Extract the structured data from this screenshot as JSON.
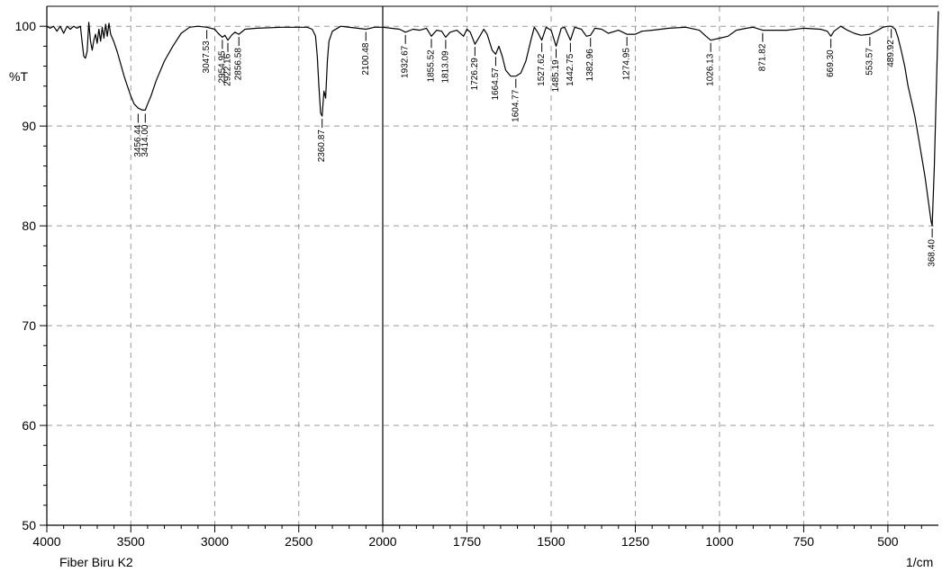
{
  "chart_data": {
    "type": "line",
    "title": "",
    "xlabel": "",
    "ylabel": "%T",
    "x_unit": "1/cm",
    "sample_name": "Fiber Biru K2",
    "xlim": [
      4000,
      350
    ],
    "ylim": [
      50,
      102
    ],
    "x_axis_break": 2000,
    "x_ticks": [
      4000,
      3500,
      3000,
      2500,
      2000,
      1750,
      1500,
      1250,
      1000,
      750,
      500
    ],
    "x_tick_labels": [
      "4000",
      "3500",
      "3000",
      "2500",
      "2000",
      "1750",
      "1500",
      "1250",
      "1000",
      "750",
      "500"
    ],
    "y_ticks": [
      50,
      60,
      70,
      80,
      90,
      100
    ],
    "y_tick_labels": [
      "50",
      "60",
      "70",
      "80",
      "90",
      "100"
    ],
    "grid": true,
    "series": [
      {
        "color": "#000000",
        "points": [
          [
            4000,
            100
          ],
          [
            3980,
            99.8
          ],
          [
            3960,
            100
          ],
          [
            3940,
            99.5
          ],
          [
            3920,
            100
          ],
          [
            3900,
            99.3
          ],
          [
            3880,
            100
          ],
          [
            3860,
            99.7
          ],
          [
            3840,
            100
          ],
          [
            3820,
            99.8
          ],
          [
            3800,
            100
          ],
          [
            3790,
            98.4
          ],
          [
            3780,
            97.0
          ],
          [
            3770,
            96.8
          ],
          [
            3760,
            97.5
          ],
          [
            3750,
            100.4
          ],
          [
            3740,
            98.5
          ],
          [
            3730,
            97.6
          ],
          [
            3720,
            98.6
          ],
          [
            3710,
            99.2
          ],
          [
            3700,
            98.3
          ],
          [
            3690,
            99.7
          ],
          [
            3680,
            98.5
          ],
          [
            3670,
            99.9
          ],
          [
            3660,
            98.8
          ],
          [
            3650,
            100.2
          ],
          [
            3640,
            99.0
          ],
          [
            3630,
            100.3
          ],
          [
            3620,
            99.2
          ],
          [
            3600,
            98.4
          ],
          [
            3580,
            97.4
          ],
          [
            3560,
            96.2
          ],
          [
            3540,
            95.0
          ],
          [
            3520,
            94.0
          ],
          [
            3500,
            93.0
          ],
          [
            3480,
            92.2
          ],
          [
            3456.44,
            91.8
          ],
          [
            3430,
            91.6
          ],
          [
            3414,
            91.6
          ],
          [
            3400,
            92.2
          ],
          [
            3380,
            93.0
          ],
          [
            3350,
            94.5
          ],
          [
            3300,
            96.5
          ],
          [
            3250,
            98.0
          ],
          [
            3200,
            99.3
          ],
          [
            3150,
            99.9
          ],
          [
            3100,
            100
          ],
          [
            3047.53,
            99.9
          ],
          [
            3000,
            99.7
          ],
          [
            2980,
            99.3
          ],
          [
            2954.95,
            98.9
          ],
          [
            2940,
            99.1
          ],
          [
            2922.16,
            98.6
          ],
          [
            2900,
            99.1
          ],
          [
            2880,
            99.4
          ],
          [
            2856.58,
            99.2
          ],
          [
            2820,
            99.7
          ],
          [
            2750,
            99.8
          ],
          [
            2600,
            99.9
          ],
          [
            2450,
            99.9
          ],
          [
            2420,
            99.7
          ],
          [
            2400,
            99.0
          ],
          [
            2390,
            97.0
          ],
          [
            2380,
            94.0
          ],
          [
            2370,
            91.3
          ],
          [
            2360.87,
            91.0
          ],
          [
            2350,
            93.5
          ],
          [
            2340,
            92.8
          ],
          [
            2330,
            96.5
          ],
          [
            2320,
            98.5
          ],
          [
            2300,
            99.5
          ],
          [
            2250,
            100
          ],
          [
            2150,
            99.8
          ],
          [
            2100.48,
            99.7
          ],
          [
            2050,
            99.9
          ],
          [
            2000,
            99.9
          ],
          [
            1975,
            99.8
          ],
          [
            1950,
            99.7
          ],
          [
            1932.67,
            99.4
          ],
          [
            1910,
            99.7
          ],
          [
            1890,
            99.6
          ],
          [
            1870,
            99.8
          ],
          [
            1855.52,
            99.0
          ],
          [
            1840,
            99.6
          ],
          [
            1825,
            99.5
          ],
          [
            1813.09,
            98.9
          ],
          [
            1800,
            99.4
          ],
          [
            1780,
            99.6
          ],
          [
            1760,
            99.0
          ],
          [
            1750,
            99.7
          ],
          [
            1740,
            99.4
          ],
          [
            1726.29,
            98.2
          ],
          [
            1710,
            99.1
          ],
          [
            1700,
            99.7
          ],
          [
            1690,
            99.2
          ],
          [
            1675,
            97.6
          ],
          [
            1664.57,
            97.2
          ],
          [
            1655,
            98.0
          ],
          [
            1645,
            97.0
          ],
          [
            1635,
            95.6
          ],
          [
            1620,
            95.0
          ],
          [
            1604.77,
            95.0
          ],
          [
            1590,
            95.3
          ],
          [
            1575,
            96.5
          ],
          [
            1560,
            98.6
          ],
          [
            1550,
            99.9
          ],
          [
            1540,
            99.4
          ],
          [
            1527.62,
            98.6
          ],
          [
            1515,
            99.9
          ],
          [
            1500,
            99.6
          ],
          [
            1485.19,
            98.0
          ],
          [
            1470,
            99.8
          ],
          [
            1460,
            99.9
          ],
          [
            1442.75,
            98.6
          ],
          [
            1430,
            99.9
          ],
          [
            1410,
            99.7
          ],
          [
            1395,
            99.0
          ],
          [
            1382.96,
            99.1
          ],
          [
            1370,
            99.8
          ],
          [
            1350,
            99.7
          ],
          [
            1330,
            99.3
          ],
          [
            1300,
            99.6
          ],
          [
            1274.95,
            99.2
          ],
          [
            1250,
            99.2
          ],
          [
            1230,
            99.5
          ],
          [
            1200,
            99.6
          ],
          [
            1150,
            99.8
          ],
          [
            1100,
            99.9
          ],
          [
            1060,
            99.6
          ],
          [
            1040,
            99.0
          ],
          [
            1026.13,
            98.6
          ],
          [
            1000,
            98.8
          ],
          [
            975,
            99.0
          ],
          [
            950,
            99.6
          ],
          [
            920,
            99.8
          ],
          [
            900,
            99.9
          ],
          [
            871.82,
            99.6
          ],
          [
            850,
            99.6
          ],
          [
            800,
            99.6
          ],
          [
            750,
            99.8
          ],
          [
            700,
            99.7
          ],
          [
            680,
            99.5
          ],
          [
            669.3,
            99.0
          ],
          [
            660,
            99.5
          ],
          [
            640,
            100
          ],
          [
            620,
            99.6
          ],
          [
            600,
            99.3
          ],
          [
            580,
            99.1
          ],
          [
            553.57,
            99.2
          ],
          [
            530,
            99.6
          ],
          [
            515,
            99.9
          ],
          [
            500,
            100
          ],
          [
            489.92,
            100
          ],
          [
            478,
            99.7
          ],
          [
            470,
            98.9
          ],
          [
            460,
            97.5
          ],
          [
            450,
            96.0
          ],
          [
            440,
            94.0
          ],
          [
            430,
            92.5
          ],
          [
            420,
            91.0
          ],
          [
            410,
            89.0
          ],
          [
            400,
            87.0
          ],
          [
            390,
            85.0
          ],
          [
            380,
            82.5
          ],
          [
            372,
            80.5
          ],
          [
            368.4,
            80.0
          ],
          [
            362,
            86.0
          ],
          [
            356,
            94.0
          ],
          [
            350,
            101.5
          ]
        ]
      }
    ],
    "peak_labels": [
      {
        "x": 3456.44,
        "text": "3456.44",
        "y": 91.5
      },
      {
        "x": 3414.0,
        "text": "3414.00",
        "y": 91.5
      },
      {
        "x": 3047.53,
        "text": "3047.53",
        "y": 99.9
      },
      {
        "x": 2954.95,
        "text": "2954.95",
        "y": 98.9
      },
      {
        "x": 2922.16,
        "text": "2922.16",
        "y": 98.6
      },
      {
        "x": 2856.58,
        "text": "2856.58",
        "y": 99.2
      },
      {
        "x": 2360.87,
        "text": "2360.87",
        "y": 91.0
      },
      {
        "x": 2100.48,
        "text": "2100.48",
        "y": 99.7
      },
      {
        "x": 1932.67,
        "text": "1932.67",
        "y": 99.4
      },
      {
        "x": 1855.52,
        "text": "1855.52",
        "y": 99.0
      },
      {
        "x": 1813.09,
        "text": "1813.09",
        "y": 98.9
      },
      {
        "x": 1726.29,
        "text": "1726.29",
        "y": 98.2
      },
      {
        "x": 1664.57,
        "text": "1664.57",
        "y": 97.2
      },
      {
        "x": 1604.77,
        "text": "1604.77",
        "y": 95.0
      },
      {
        "x": 1527.62,
        "text": "1527.62",
        "y": 98.6
      },
      {
        "x": 1485.19,
        "text": "1485.19",
        "y": 98.0
      },
      {
        "x": 1442.75,
        "text": "1442.75",
        "y": 98.6
      },
      {
        "x": 1382.96,
        "text": "1382.96",
        "y": 99.1
      },
      {
        "x": 1274.95,
        "text": "1274.95",
        "y": 99.2
      },
      {
        "x": 1026.13,
        "text": "1026.13",
        "y": 98.6
      },
      {
        "x": 871.82,
        "text": "871.82",
        "y": 99.6
      },
      {
        "x": 669.3,
        "text": "669.30",
        "y": 99.0
      },
      {
        "x": 553.57,
        "text": "553.57",
        "y": 99.2
      },
      {
        "x": 489.92,
        "text": "489.92",
        "y": 100.0
      },
      {
        "x": 368.4,
        "text": "368.40",
        "y": 80.0
      }
    ]
  }
}
